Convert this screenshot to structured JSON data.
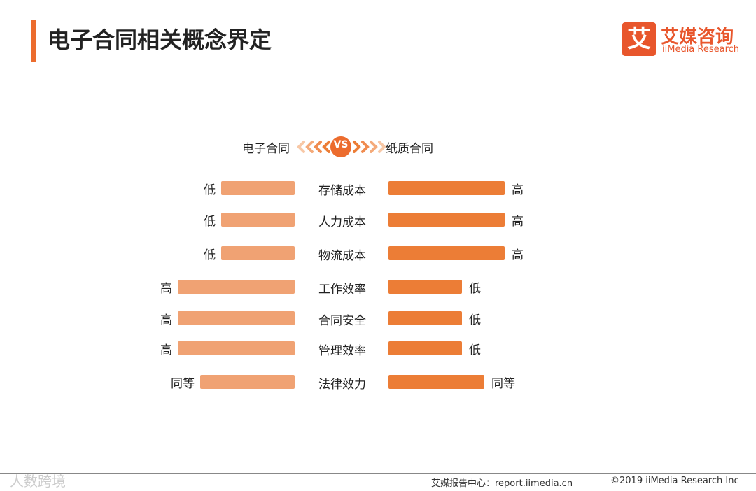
{
  "header": {
    "title": "电子合同相关概念界定",
    "logo_mark": "艾",
    "logo_name": "艾媒咨询",
    "logo_en": "iiMedia Research"
  },
  "comparison": {
    "left": "电子合同",
    "vs": "VS",
    "right": "纸质合同",
    "rows": [
      {
        "item": "存储成本",
        "left": "低",
        "right": "高"
      },
      {
        "item": "人力成本",
        "left": "低",
        "right": "高"
      },
      {
        "item": "物流成本",
        "left": "低",
        "right": "高"
      },
      {
        "item": "工作效率",
        "left": "高",
        "right": "低"
      },
      {
        "item": "合同安全",
        "left": "高",
        "right": "低"
      },
      {
        "item": "管理效率",
        "left": "高",
        "right": "低"
      },
      {
        "item": "法律效力",
        "left": "同等",
        "right": "同等"
      }
    ]
  },
  "footer": {
    "source": "艾媒报告中心：report.iimedia.cn",
    "copyright": "©2019  iiMedia Research  Inc",
    "watermark": "人数跨境"
  }
}
